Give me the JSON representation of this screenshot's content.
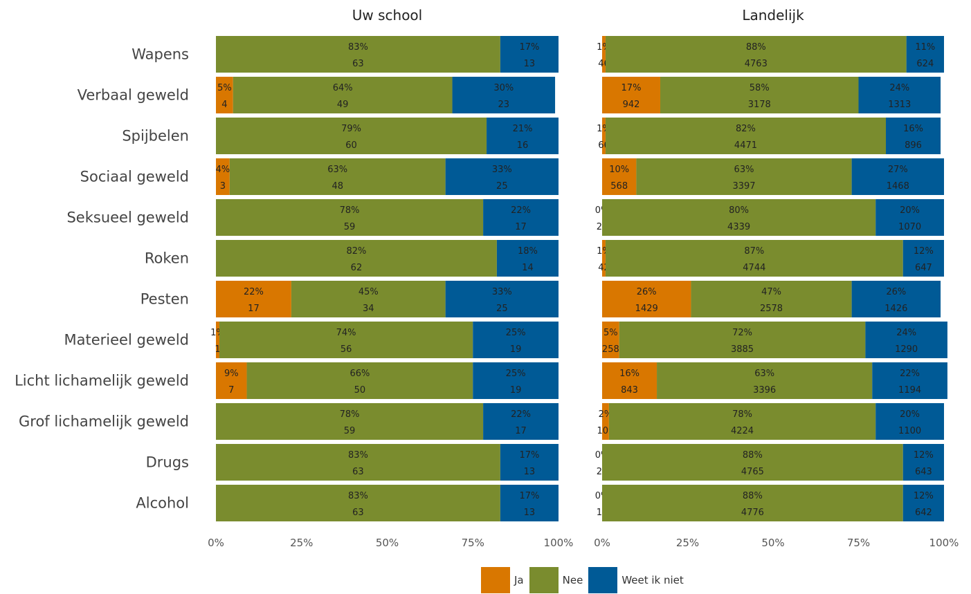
{
  "chart_data": {
    "type": "bar",
    "orientation": "horizontal",
    "stacked": true,
    "percent": true,
    "categories": [
      "Wapens",
      "Verbaal geweld",
      "Spijbelen",
      "Sociaal geweld",
      "Seksueel geweld",
      "Roken",
      "Pesten",
      "Materieel geweld",
      "Licht lichamelijk geweld",
      "Grof lichamelijk geweld",
      "Drugs",
      "Alcohol"
    ],
    "x_ticks": [
      "0%",
      "25%",
      "50%",
      "75%",
      "100%"
    ],
    "xlim": [
      0,
      100
    ],
    "grid": false,
    "legend_position": "bottom",
    "series_names": [
      "Ja",
      "Nee",
      "Weet ik niet"
    ],
    "series_colors": [
      "#D97700",
      "#7A8C2E",
      "#005A96"
    ],
    "panels": [
      {
        "title": "Uw school",
        "data": [
          {
            "percent": [
              0,
              83,
              17
            ],
            "count": [
              0,
              63,
              13
            ],
            "pct_labels": [
              null,
              "83%",
              "17%"
            ],
            "count_labels": [
              null,
              "63",
              "13"
            ]
          },
          {
            "percent": [
              5,
              64,
              30
            ],
            "count": [
              4,
              49,
              23
            ],
            "pct_labels": [
              "5%",
              "64%",
              "30%"
            ],
            "count_labels": [
              "4",
              "49",
              "23"
            ]
          },
          {
            "percent": [
              0,
              79,
              21
            ],
            "count": [
              0,
              60,
              16
            ],
            "pct_labels": [
              null,
              "79%",
              "21%"
            ],
            "count_labels": [
              null,
              "60",
              "16"
            ]
          },
          {
            "percent": [
              4,
              63,
              33
            ],
            "count": [
              3,
              48,
              25
            ],
            "pct_labels": [
              "4%",
              "63%",
              "33%"
            ],
            "count_labels": [
              "3",
              "48",
              "25"
            ]
          },
          {
            "percent": [
              0,
              78,
              22
            ],
            "count": [
              0,
              59,
              17
            ],
            "pct_labels": [
              null,
              "78%",
              "22%"
            ],
            "count_labels": [
              null,
              "59",
              "17"
            ]
          },
          {
            "percent": [
              0,
              82,
              18
            ],
            "count": [
              0,
              62,
              14
            ],
            "pct_labels": [
              null,
              "82%",
              "18%"
            ],
            "count_labels": [
              null,
              "62",
              "14"
            ]
          },
          {
            "percent": [
              22,
              45,
              33
            ],
            "count": [
              17,
              34,
              25
            ],
            "pct_labels": [
              "22%",
              "45%",
              "33%"
            ],
            "count_labels": [
              "17",
              "34",
              "25"
            ]
          },
          {
            "percent": [
              1,
              74,
              25
            ],
            "count": [
              1,
              56,
              19
            ],
            "pct_labels": [
              "1%",
              "74%",
              "25%"
            ],
            "count_labels": [
              "1",
              "56",
              "19"
            ]
          },
          {
            "percent": [
              9,
              66,
              25
            ],
            "count": [
              7,
              50,
              19
            ],
            "pct_labels": [
              "9%",
              "66%",
              "25%"
            ],
            "count_labels": [
              "7",
              "50",
              "19"
            ]
          },
          {
            "percent": [
              0,
              78,
              22
            ],
            "count": [
              0,
              59,
              17
            ],
            "pct_labels": [
              null,
              "78%",
              "22%"
            ],
            "count_labels": [
              null,
              "59",
              "17"
            ]
          },
          {
            "percent": [
              0,
              83,
              17
            ],
            "count": [
              0,
              63,
              13
            ],
            "pct_labels": [
              null,
              "83%",
              "17%"
            ],
            "count_labels": [
              null,
              "63",
              "13"
            ]
          },
          {
            "percent": [
              0,
              83,
              17
            ],
            "count": [
              0,
              63,
              13
            ],
            "pct_labels": [
              null,
              "83%",
              "17%"
            ],
            "count_labels": [
              null,
              "63",
              "13"
            ]
          }
        ]
      },
      {
        "title": "Landelijk",
        "data": [
          {
            "percent": [
              1,
              88,
              11
            ],
            "count": [
              46,
              4763,
              624
            ],
            "pct_labels": [
              "1%",
              "88%",
              "11%"
            ],
            "count_labels": [
              "46",
              "4763",
              "624"
            ]
          },
          {
            "percent": [
              17,
              58,
              24
            ],
            "count": [
              942,
              3178,
              1313
            ],
            "pct_labels": [
              "17%",
              "58%",
              "24%"
            ],
            "count_labels": [
              "942",
              "3178",
              "1313"
            ]
          },
          {
            "percent": [
              1,
              82,
              16
            ],
            "count": [
              66,
              4471,
              896
            ],
            "pct_labels": [
              "1%",
              "82%",
              "16%"
            ],
            "count_labels": [
              "66",
              "4471",
              "896"
            ]
          },
          {
            "percent": [
              10,
              63,
              27
            ],
            "count": [
              568,
              3397,
              1468
            ],
            "pct_labels": [
              "10%",
              "63%",
              "27%"
            ],
            "count_labels": [
              "568",
              "3397",
              "1468"
            ]
          },
          {
            "percent": [
              0,
              80,
              20
            ],
            "count": [
              24,
              4339,
              1070
            ],
            "pct_labels": [
              "0%",
              "80%",
              "20%"
            ],
            "count_labels": [
              "24",
              "4339",
              "1070"
            ]
          },
          {
            "percent": [
              1,
              87,
              12
            ],
            "count": [
              42,
              4744,
              647
            ],
            "pct_labels": [
              "1%",
              "87%",
              "12%"
            ],
            "count_labels": [
              "42",
              "4744",
              "647"
            ]
          },
          {
            "percent": [
              26,
              47,
              26
            ],
            "count": [
              1429,
              2578,
              1426
            ],
            "pct_labels": [
              "26%",
              "47%",
              "26%"
            ],
            "count_labels": [
              "1429",
              "2578",
              "1426"
            ]
          },
          {
            "percent": [
              5,
              72,
              24
            ],
            "count": [
              258,
              3885,
              1290
            ],
            "pct_labels": [
              "5%",
              "72%",
              "24%"
            ],
            "count_labels": [
              "258",
              "3885",
              "1290"
            ]
          },
          {
            "percent": [
              16,
              63,
              22
            ],
            "count": [
              843,
              3396,
              1194
            ],
            "pct_labels": [
              "16%",
              "63%",
              "22%"
            ],
            "count_labels": [
              "843",
              "3396",
              "1194"
            ]
          },
          {
            "percent": [
              2,
              78,
              20
            ],
            "count": [
              109,
              4224,
              1100
            ],
            "pct_labels": [
              "2%",
              "78%",
              "20%"
            ],
            "count_labels": [
              "109",
              "4224",
              "1100"
            ]
          },
          {
            "percent": [
              0,
              88,
              12
            ],
            "count": [
              25,
              4765,
              643
            ],
            "pct_labels": [
              "0%",
              "88%",
              "12%"
            ],
            "count_labels": [
              "25",
              "4765",
              "643"
            ]
          },
          {
            "percent": [
              0,
              88,
              12
            ],
            "count": [
              15,
              4776,
              642
            ],
            "pct_labels": [
              "0%",
              "88%",
              "12%"
            ],
            "count_labels": [
              "15",
              "4776",
              "642"
            ]
          }
        ]
      }
    ]
  },
  "legend": {
    "items": [
      {
        "label": "Ja",
        "color": "#D97700"
      },
      {
        "label": "Nee",
        "color": "#7A8C2E"
      },
      {
        "label": "Weet ik niet",
        "color": "#005A96"
      }
    ]
  }
}
